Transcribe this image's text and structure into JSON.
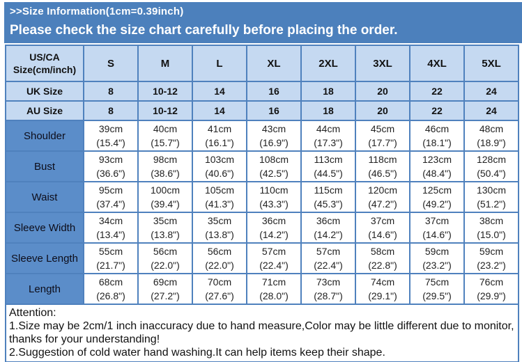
{
  "banner": {
    "line1": ">>Size Information(1cm=0.39inch)",
    "line2": "Please check the size chart carefully before placing the order."
  },
  "table": {
    "corner_header": "US/CA Size(cm/inch)",
    "sizes": [
      "S",
      "M",
      "L",
      "XL",
      "2XL",
      "3XL",
      "4XL",
      "5XL"
    ],
    "size_rows": [
      {
        "label": "UK Size",
        "values": [
          "8",
          "10-12",
          "14",
          "16",
          "18",
          "20",
          "22",
          "24"
        ]
      },
      {
        "label": "AU Size",
        "values": [
          "8",
          "10-12",
          "14",
          "16",
          "18",
          "20",
          "22",
          "24"
        ]
      }
    ],
    "measurement_rows": [
      {
        "label": "Shoulder",
        "cm": [
          "39cm",
          "40cm",
          "41cm",
          "43cm",
          "44cm",
          "45cm",
          "46cm",
          "48cm"
        ],
        "inch": [
          "(15.4\")",
          "(15.7\")",
          "(16.1\")",
          "(16.9\")",
          "(17.3\")",
          "(17.7\")",
          "(18.1\")",
          "(18.9\")"
        ]
      },
      {
        "label": "Bust",
        "cm": [
          "93cm",
          "98cm",
          "103cm",
          "108cm",
          "113cm",
          "118cm",
          "123cm",
          "128cm"
        ],
        "inch": [
          "(36.6\")",
          "(38.6\")",
          "(40.6\")",
          "(42.5\")",
          "(44.5\")",
          "(46.5\")",
          "(48.4\")",
          "(50.4\")"
        ]
      },
      {
        "label": "Waist",
        "cm": [
          "95cm",
          "100cm",
          "105cm",
          "110cm",
          "115cm",
          "120cm",
          "125cm",
          "130cm"
        ],
        "inch": [
          "(37.4\")",
          "(39.4\")",
          "(41.3\")",
          "(43.3\")",
          "(45.3\")",
          "(47.2\")",
          "(49.2\")",
          "(51.2\")"
        ]
      },
      {
        "label": "Sleeve Width",
        "cm": [
          "34cm",
          "35cm",
          "35cm",
          "36cm",
          "36cm",
          "37cm",
          "37cm",
          "38cm"
        ],
        "inch": [
          "(13.4\")",
          "(13.8\")",
          "(13.8\")",
          "(14.2\")",
          "(14.2\")",
          "(14.6\")",
          "(14.6\")",
          "(15.0\")"
        ]
      },
      {
        "label": "Sleeve Length",
        "cm": [
          "55cm",
          "56cm",
          "56cm",
          "57cm",
          "57cm",
          "58cm",
          "59cm",
          "59cm"
        ],
        "inch": [
          "(21.7\")",
          "(22.0\")",
          "(22.0\")",
          "(22.4\")",
          "(22.4\")",
          "(22.8\")",
          "(23.2\")",
          "(23.2\")"
        ]
      },
      {
        "label": "Length",
        "cm": [
          "68cm",
          "69cm",
          "70cm",
          "71cm",
          "73cm",
          "74cm",
          "75cm",
          "76cm"
        ],
        "inch": [
          "(26.8\")",
          "(27.2\")",
          "(27.6\")",
          "(28.0\")",
          "(28.7\")",
          "(29.1\")",
          "(29.5\")",
          "(29.9\")"
        ]
      }
    ]
  },
  "attention": {
    "title": "Attention:",
    "items": [
      "1.Size may be 2cm/1 inch inaccuracy due to hand measure,Color may be little different due to monitor,thanks for your understanding!",
      "2.Suggestion of cold water hand washing.It can help items keep their shape."
    ]
  },
  "colors": {
    "banner_blue": "#4c80bc",
    "header_light_blue": "#c5d9f1",
    "label_blue": "#5b8dc9",
    "border_blue": "#4f81bd",
    "banner_text": "#ffffff",
    "body_text": "#111111"
  }
}
